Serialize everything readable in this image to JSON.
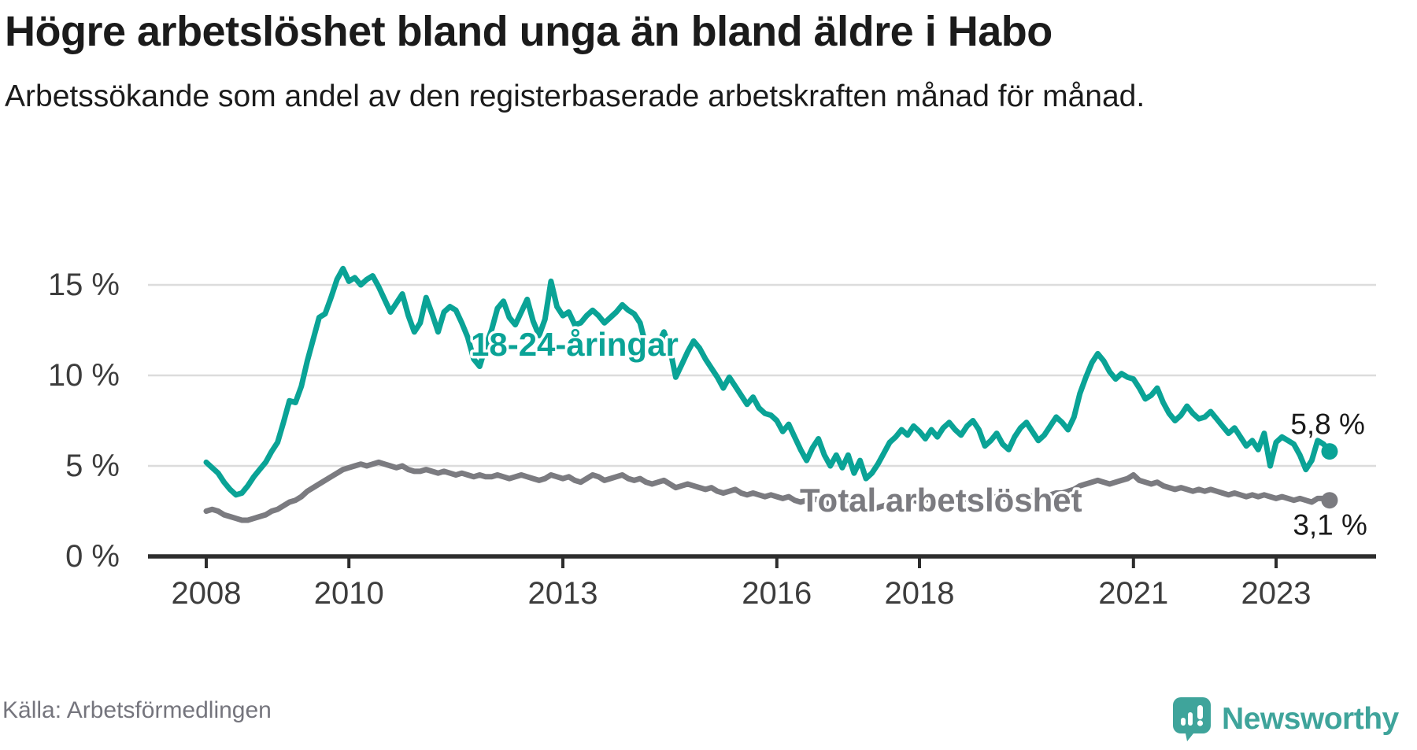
{
  "header": {
    "title": "Högre arbetslöshet bland unga än bland äldre i Habo",
    "subtitle": "Arbetssökande som andel av den registerbaserade arbetskraften månad för månad."
  },
  "footer": {
    "source": "Källa: Arbetsförmedlingen",
    "brand": "Newsworthy"
  },
  "colors": {
    "youth_line": "#0aa396",
    "total_line": "#7b7b80",
    "grid": "#dcdcdc",
    "axis": "#2d2d2d",
    "tick_label": "#3d3d3d",
    "value_label": "#1a1a1a",
    "brand_teal": "#3fa49b"
  },
  "chart_data": {
    "type": "line",
    "x_start_year": 2008,
    "x_step_months": 1,
    "x_end_note": "monthly values Jan 2008 - Oct 2023",
    "x_tick_years": [
      2008,
      2010,
      2013,
      2016,
      2018,
      2021,
      2023
    ],
    "x_tick_labels": [
      "2008",
      "2010",
      "2013",
      "2016",
      "2018",
      "2021",
      "2023"
    ],
    "y_ticks": [
      0,
      5,
      10,
      15
    ],
    "y_tick_labels": [
      "0 %",
      "5 %",
      "10 %",
      "15 %"
    ],
    "ylim": [
      0,
      17
    ],
    "grid": true,
    "series": [
      {
        "name": "18-24-åringar",
        "color": "#0aa396",
        "end_value_label": "5,8 %",
        "values": [
          5.2,
          4.9,
          4.6,
          4.1,
          3.7,
          3.4,
          3.5,
          3.9,
          4.4,
          4.8,
          5.2,
          5.8,
          6.3,
          7.4,
          8.6,
          8.5,
          9.4,
          10.8,
          12.0,
          13.2,
          13.4,
          14.3,
          15.3,
          15.9,
          15.2,
          15.4,
          15.0,
          15.3,
          15.5,
          14.9,
          14.2,
          13.5,
          14.0,
          14.5,
          13.3,
          12.4,
          12.9,
          14.3,
          13.4,
          12.4,
          13.5,
          13.8,
          13.6,
          12.9,
          12.1,
          10.9,
          10.5,
          11.6,
          12.5,
          13.7,
          14.1,
          13.2,
          12.8,
          13.5,
          14.2,
          13.0,
          12.2,
          13.1,
          15.2,
          13.8,
          13.3,
          13.5,
          12.8,
          12.9,
          13.3,
          13.6,
          13.3,
          12.9,
          13.2,
          13.5,
          13.9,
          13.6,
          13.4,
          12.9,
          11.6,
          11.3,
          11.7,
          12.4,
          11.5,
          9.9,
          10.6,
          11.3,
          11.9,
          11.5,
          10.9,
          10.4,
          9.9,
          9.3,
          9.9,
          9.4,
          8.9,
          8.4,
          8.8,
          8.2,
          7.9,
          7.8,
          7.5,
          6.9,
          7.3,
          6.6,
          5.9,
          5.3,
          6.0,
          6.5,
          5.6,
          5.0,
          5.6,
          4.9,
          5.6,
          4.6,
          5.3,
          4.3,
          4.6,
          5.1,
          5.7,
          6.3,
          6.6,
          7.0,
          6.7,
          7.2,
          6.9,
          6.5,
          7.0,
          6.6,
          7.1,
          7.4,
          7.0,
          6.7,
          7.2,
          7.5,
          7.0,
          6.1,
          6.4,
          6.8,
          6.2,
          5.9,
          6.6,
          7.1,
          7.4,
          6.9,
          6.4,
          6.7,
          7.2,
          7.7,
          7.4,
          7.0,
          7.7,
          9.0,
          9.9,
          10.7,
          11.2,
          10.8,
          10.2,
          9.8,
          10.1,
          9.9,
          9.8,
          9.3,
          8.7,
          8.9,
          9.3,
          8.5,
          7.9,
          7.5,
          7.8,
          8.3,
          7.9,
          7.6,
          7.7,
          8.0,
          7.6,
          7.2,
          6.8,
          7.1,
          6.6,
          6.1,
          6.4,
          5.9,
          6.8,
          5.0,
          6.3,
          6.6,
          6.4,
          6.2,
          5.6,
          4.8,
          5.3,
          6.4,
          6.2,
          5.8
        ]
      },
      {
        "name": "Total arbetslöshet",
        "color": "#7b7b80",
        "end_value_label": "3,1 %",
        "values": [
          2.5,
          2.6,
          2.5,
          2.3,
          2.2,
          2.1,
          2.0,
          2.0,
          2.1,
          2.2,
          2.3,
          2.5,
          2.6,
          2.8,
          3.0,
          3.1,
          3.3,
          3.6,
          3.8,
          4.0,
          4.2,
          4.4,
          4.6,
          4.8,
          4.9,
          5.0,
          5.1,
          5.0,
          5.1,
          5.2,
          5.1,
          5.0,
          4.9,
          5.0,
          4.8,
          4.7,
          4.7,
          4.8,
          4.7,
          4.6,
          4.7,
          4.6,
          4.5,
          4.6,
          4.5,
          4.4,
          4.5,
          4.4,
          4.4,
          4.5,
          4.4,
          4.3,
          4.4,
          4.5,
          4.4,
          4.3,
          4.2,
          4.3,
          4.5,
          4.4,
          4.3,
          4.4,
          4.2,
          4.1,
          4.3,
          4.5,
          4.4,
          4.2,
          4.3,
          4.4,
          4.5,
          4.3,
          4.2,
          4.3,
          4.1,
          4.0,
          4.1,
          4.2,
          4.0,
          3.8,
          3.9,
          4.0,
          3.9,
          3.8,
          3.7,
          3.8,
          3.6,
          3.5,
          3.6,
          3.7,
          3.5,
          3.4,
          3.5,
          3.4,
          3.3,
          3.4,
          3.3,
          3.2,
          3.3,
          3.1,
          3.0,
          3.1,
          3.2,
          3.1,
          3.0,
          2.9,
          3.0,
          2.9,
          2.9,
          2.8,
          2.9,
          2.7,
          2.6,
          2.7,
          2.8,
          2.9,
          3.0,
          3.1,
          3.0,
          3.1,
          3.0,
          3.1,
          3.2,
          3.1,
          3.0,
          3.1,
          3.2,
          3.1,
          3.2,
          3.3,
          3.2,
          3.1,
          3.2,
          3.3,
          3.2,
          3.1,
          3.2,
          3.3,
          3.4,
          3.3,
          3.2,
          3.3,
          3.4,
          3.5,
          3.5,
          3.6,
          3.7,
          3.9,
          4.0,
          4.1,
          4.2,
          4.1,
          4.0,
          4.1,
          4.2,
          4.3,
          4.5,
          4.2,
          4.1,
          4.0,
          4.1,
          3.9,
          3.8,
          3.7,
          3.8,
          3.7,
          3.6,
          3.7,
          3.6,
          3.7,
          3.6,
          3.5,
          3.4,
          3.5,
          3.4,
          3.3,
          3.4,
          3.3,
          3.4,
          3.3,
          3.2,
          3.3,
          3.2,
          3.1,
          3.2,
          3.1,
          3.0,
          3.2,
          3.2,
          3.1
        ]
      }
    ],
    "legend_position": "inline-labels"
  }
}
